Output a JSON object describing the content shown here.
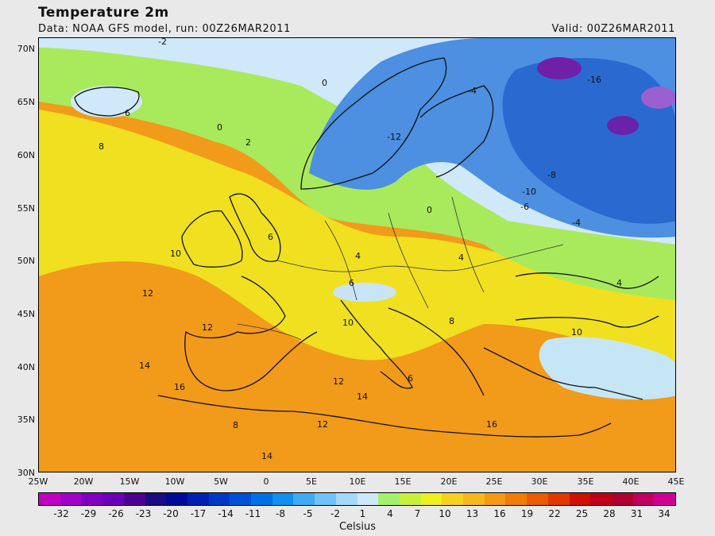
{
  "header": {
    "title": "Temperature 2m",
    "data_source": "Data: NOAA GFS model, run: 00Z26MAR2011",
    "valid": "Valid: 00Z26MAR2011"
  },
  "map": {
    "lat_labels": [
      "70N",
      "65N",
      "60N",
      "55N",
      "50N",
      "45N",
      "40N",
      "35N",
      "30N"
    ],
    "lon_labels": [
      "25W",
      "20W",
      "15W",
      "10W",
      "5W",
      "0",
      "5E",
      "10E",
      "15E",
      "20E",
      "25E",
      "30E",
      "35E",
      "40E",
      "45E"
    ],
    "contour_labels": [
      "-2",
      "0",
      "2",
      "4",
      "6",
      "8",
      "10",
      "12",
      "14",
      "16",
      "-4",
      "-6",
      "-8",
      "-10",
      "-12",
      "-16"
    ]
  },
  "colorbar": {
    "labels": [
      "-32",
      "-29",
      "-26",
      "-23",
      "-20",
      "-17",
      "-14",
      "-11",
      "-8",
      "-5",
      "-2",
      "1",
      "4",
      "7",
      "10",
      "13",
      "16",
      "19",
      "22",
      "25",
      "28",
      "31",
      "34"
    ],
    "colors": [
      "#c000c0",
      "#a000c8",
      "#8000c0",
      "#6a00b8",
      "#4b0090",
      "#1c0a80",
      "#000a9a",
      "#0020b0",
      "#0038c8",
      "#0050d8",
      "#0070e8",
      "#1090f0",
      "#40aaf5",
      "#70c2f8",
      "#a6d8fa",
      "#cde8fb",
      "#a5f06a",
      "#c8f03a",
      "#eef020",
      "#f5d21e",
      "#f5b81e",
      "#f59a14",
      "#f07c0a",
      "#ea5a00",
      "#e03800",
      "#d01000",
      "#c00018",
      "#b00030",
      "#c00060",
      "#d00090"
    ],
    "units": "Celsius"
  }
}
